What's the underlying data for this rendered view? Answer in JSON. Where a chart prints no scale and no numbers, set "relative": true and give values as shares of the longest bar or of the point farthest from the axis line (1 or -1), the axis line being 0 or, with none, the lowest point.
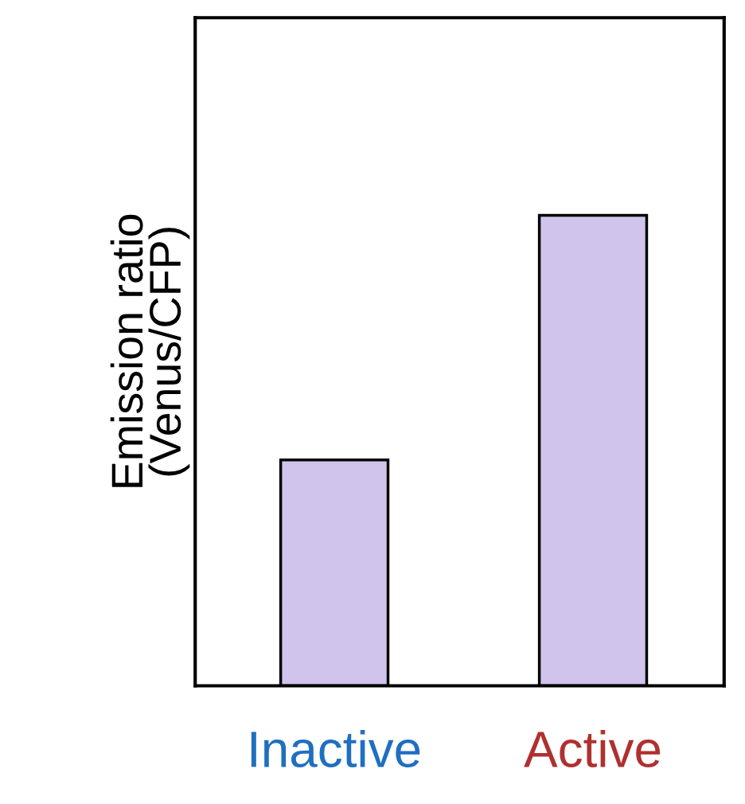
{
  "chart_data": {
    "type": "bar",
    "relative": true,
    "ylabel": "Emission ratio\n(Venus/CFP)",
    "categories": [
      "Inactive",
      "Active"
    ],
    "values": [
      0.48,
      1
    ],
    "color": "#d0c4ec",
    "grid": false,
    "legend": false
  }
}
